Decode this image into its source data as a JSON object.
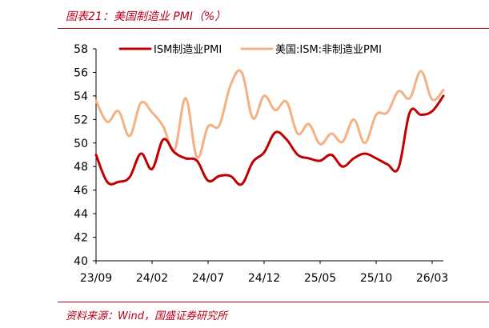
{
  "header": {
    "title": "图表21：美国制造业 PMI（%）"
  },
  "footer": {
    "source": "资料来源：Wind，国盛证券研究所"
  },
  "colors": {
    "accent": "#b8001a",
    "series_ism": "#c00000",
    "series_nonmfg": "#f4b183",
    "axis": "#000000"
  },
  "chart_data": {
    "type": "line",
    "title": "",
    "xlabel": "",
    "ylabel": "",
    "ylim": [
      40,
      58
    ],
    "yticks": [
      40,
      42,
      44,
      46,
      48,
      50,
      52,
      54,
      56,
      58
    ],
    "ytick_labels": [
      "40",
      "42",
      "44",
      "46",
      "48",
      "50",
      "52",
      "54",
      "56",
      "58"
    ],
    "x": [
      "2023-09",
      "2023-10",
      "2023-11",
      "2023-12",
      "2024-01",
      "2024-02",
      "2024-03",
      "2024-04",
      "2024-05",
      "2024-06",
      "2024-07",
      "2024-08",
      "2024-09",
      "2024-10",
      "2024-11",
      "2024-12",
      "2025-01",
      "2025-02",
      "2025-03",
      "2025-04",
      "2025-05",
      "2025-06",
      "2025-07",
      "2025-08",
      "2025-09",
      "2025-10",
      "2025-11",
      "2025-12",
      "2026-01",
      "2026-02",
      "2026-03",
      "2026-04"
    ],
    "xtick_labels": [
      "23/09",
      "24/02",
      "24/07",
      "24/12",
      "25/05",
      "25/10",
      "26/03"
    ],
    "xtick_index": [
      0,
      5,
      10,
      15,
      20,
      25,
      30
    ],
    "legend_position": "top",
    "grid": false,
    "series": [
      {
        "name": "ISM制造业PMI",
        "color": "#c00000",
        "values": [
          49.0,
          46.7,
          46.7,
          47.1,
          49.1,
          47.8,
          50.3,
          49.2,
          48.7,
          48.5,
          46.8,
          47.2,
          47.2,
          46.5,
          48.4,
          49.2,
          50.9,
          50.3,
          49.0,
          48.7,
          48.5,
          49.0,
          48.0,
          48.7,
          49.1,
          48.7,
          48.2,
          47.9,
          52.6,
          52.4,
          52.7,
          54.0
        ]
      },
      {
        "name": "美国:ISM:非制造业PMI",
        "color": "#f4b183",
        "values": [
          53.6,
          51.8,
          52.7,
          50.6,
          53.4,
          52.6,
          51.4,
          49.4,
          53.8,
          48.8,
          51.4,
          51.5,
          54.9,
          56.0,
          52.1,
          54.0,
          52.8,
          53.5,
          50.8,
          51.6,
          49.9,
          50.8,
          50.1,
          52.0,
          50.0,
          52.4,
          52.6,
          54.4,
          53.8,
          56.1,
          53.7,
          54.5
        ]
      }
    ]
  }
}
